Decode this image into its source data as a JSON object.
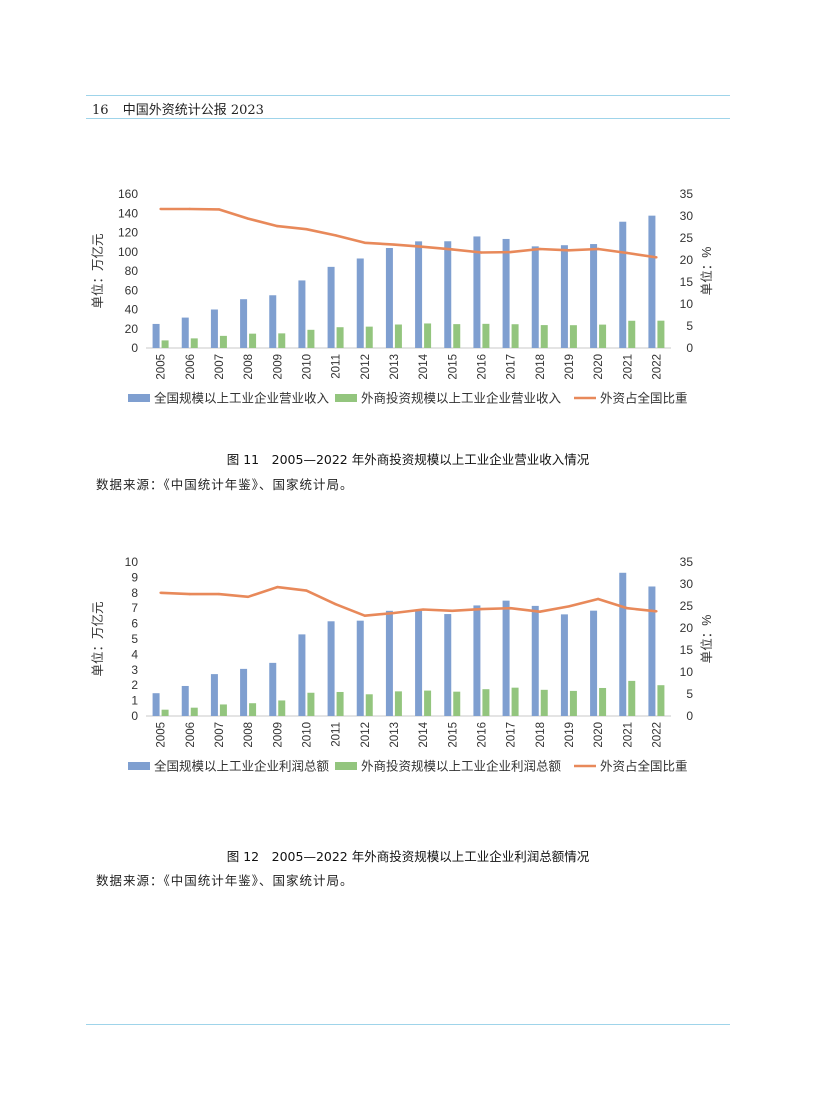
{
  "header": {
    "page_number": "16",
    "book_title": "中国外资统计公报 2023"
  },
  "colors": {
    "blue": "#7f9fd0",
    "green": "#93c57e",
    "orange": "#e8895a",
    "rule": "#9fd4ea"
  },
  "figures": [
    {
      "caption": "图 11　2005—2022 年外商投资规模以上工业企业营业收入情况",
      "source": "数据来源：《中国统计年鉴》、国家统计局。"
    },
    {
      "caption": "图 12　2005—2022 年外商投资规模以上工业企业利润总额情况",
      "source": "数据来源：《中国统计年鉴》、国家统计局。"
    }
  ],
  "chart_data": [
    {
      "type": "bar",
      "categories": [
        "2005",
        "2006",
        "2007",
        "2008",
        "2009",
        "2010",
        "2011",
        "2012",
        "2013",
        "2014",
        "2015",
        "2016",
        "2017",
        "2018",
        "2019",
        "2020",
        "2021",
        "2022"
      ],
      "ylabel": "单位：万亿元",
      "y2label": "单位：%",
      "ylim": [
        0,
        160
      ],
      "yticks": [
        0,
        20,
        40,
        60,
        80,
        100,
        120,
        140,
        160
      ],
      "y2lim": [
        0,
        35
      ],
      "y2ticks": [
        0,
        5,
        10,
        15,
        20,
        25,
        30,
        35
      ],
      "legend_position": "bottom",
      "series": [
        {
          "name": "全国规模以上工业企业营业收入",
          "kind": "bar",
          "axis": "left",
          "values": [
            25,
            31.6,
            40,
            50.7,
            54.8,
            70.2,
            84.3,
            93,
            103.9,
            110.8,
            110.9,
            115.9,
            113.3,
            105.6,
            106.8,
            108,
            131.2,
            137.5
          ]
        },
        {
          "name": "外商投资规模以上工业企业营业收入",
          "kind": "bar",
          "axis": "left",
          "values": [
            7.9,
            10,
            12.6,
            14.9,
            15.2,
            18.9,
            21.6,
            22.2,
            24.4,
            25.5,
            24.8,
            25.1,
            24.7,
            23.8,
            23.7,
            24.3,
            28.3,
            28.4
          ]
        },
        {
          "name": "外资占全国比重",
          "kind": "line",
          "axis": "right",
          "values": [
            31.6,
            31.6,
            31.5,
            29.4,
            27.7,
            27,
            25.6,
            23.9,
            23.5,
            23,
            22.4,
            21.7,
            21.8,
            22.5,
            22.2,
            22.5,
            21.6,
            20.6
          ]
        }
      ]
    },
    {
      "type": "bar",
      "categories": [
        "2005",
        "2006",
        "2007",
        "2008",
        "2009",
        "2010",
        "2011",
        "2012",
        "2013",
        "2014",
        "2015",
        "2016",
        "2017",
        "2018",
        "2019",
        "2020",
        "2021",
        "2022"
      ],
      "ylabel": "单位：万亿元",
      "y2label": "单位：%",
      "ylim": [
        0,
        10
      ],
      "yticks": [
        0,
        1,
        2,
        3,
        4,
        5,
        6,
        7,
        8,
        9,
        10
      ],
      "y2lim": [
        0,
        35
      ],
      "y2ticks": [
        0,
        5,
        10,
        15,
        20,
        25,
        30,
        35
      ],
      "legend_position": "bottom",
      "series": [
        {
          "name": "全国规模以上工业企业利润总额",
          "kind": "bar",
          "axis": "left",
          "values": [
            1.48,
            1.95,
            2.72,
            3.06,
            3.45,
            5.3,
            6.15,
            6.19,
            6.83,
            6.84,
            6.62,
            7.18,
            7.49,
            7.15,
            6.6,
            6.84,
            9.3,
            8.41
          ]
        },
        {
          "name": "外商投资规模以上工业企业利润总额",
          "kind": "bar",
          "axis": "left",
          "values": [
            0.41,
            0.54,
            0.75,
            0.83,
            1.01,
            1.51,
            1.56,
            1.41,
            1.6,
            1.65,
            1.58,
            1.74,
            1.84,
            1.7,
            1.63,
            1.82,
            2.28,
            2.0
          ]
        },
        {
          "name": "外资占全国比重",
          "kind": "line",
          "axis": "right",
          "values": [
            28,
            27.7,
            27.7,
            27.1,
            29.3,
            28.5,
            25.4,
            22.8,
            23.4,
            24.2,
            23.9,
            24.3,
            24.5,
            23.7,
            24.9,
            26.6,
            24.5,
            23.8
          ]
        }
      ]
    }
  ]
}
